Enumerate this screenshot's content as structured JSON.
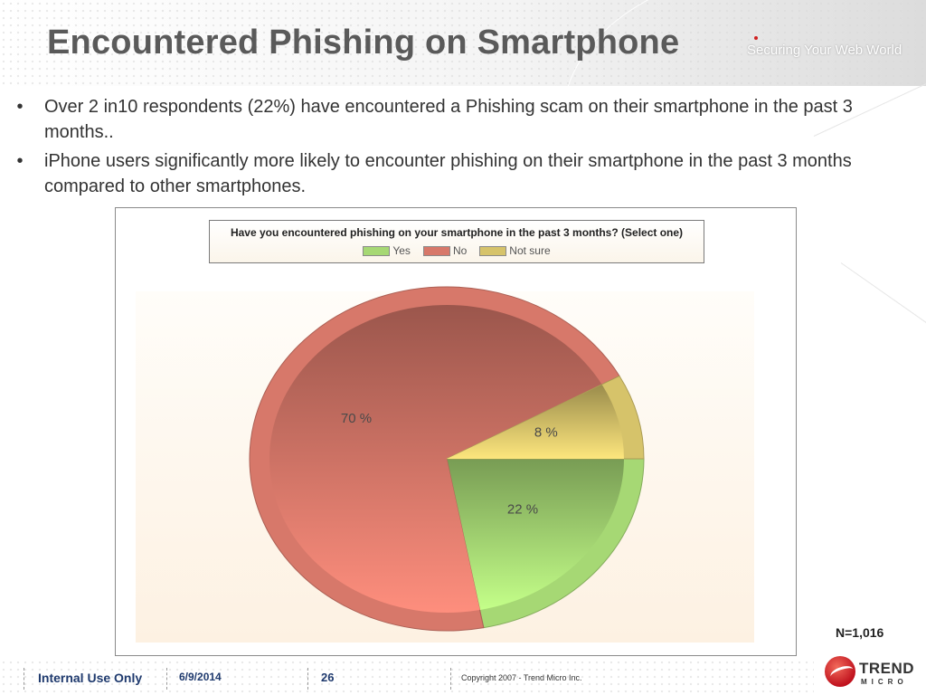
{
  "slide": {
    "title": "Encountered Phishing on Smartphone",
    "tagline": "Securing Your Web World",
    "bullets": [
      {
        "marker": "•",
        "text": "Over 2 in10 respondents (22%) have encountered a Phishing scam on their smartphone in the past 3 months.."
      },
      {
        "marker": "•",
        "text": "iPhone users significantly more likely to encounter phishing on their smartphone in the past 3 months compared to other smartphones."
      }
    ],
    "sample_size": "N=1,016"
  },
  "footer": {
    "classification": "Internal Use Only",
    "date": "6/9/2014",
    "page_number": "26",
    "copyright": "Copyright 2007 - Trend Micro Inc.",
    "logo_word": "TREND",
    "logo_sub": "MICRO"
  },
  "chart_data": {
    "type": "pie",
    "title": "Have you encountered phishing on your smartphone in the past 3 months? (Select one)",
    "legend_position": "top",
    "categories": [
      "Yes",
      "No",
      "Not sure"
    ],
    "values": [
      22,
      70,
      8
    ],
    "unit": "%",
    "data_labels": [
      "22 %",
      "70 %",
      "8 %"
    ],
    "colors": [
      "#a6d874",
      "#d7786a",
      "#d6c36a"
    ]
  }
}
